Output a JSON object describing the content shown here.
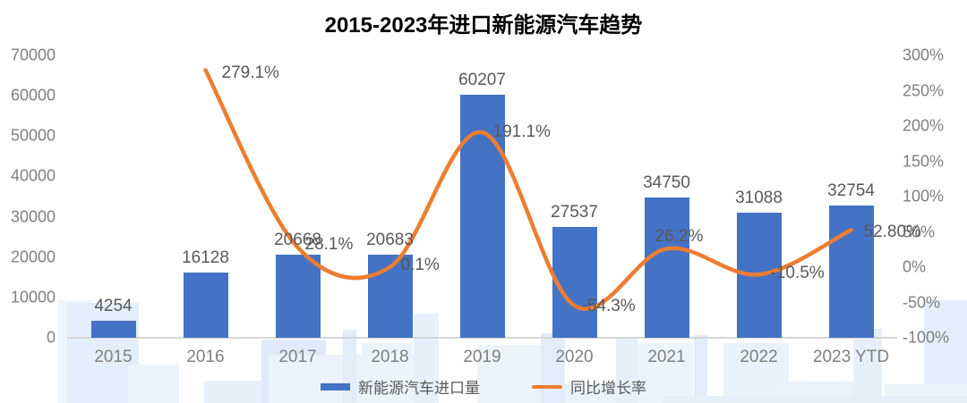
{
  "title": "2015-2023年进口新能源汽车趋势",
  "chart_data": {
    "type": "combo",
    "title": "2015-2023年进口新能源汽车趋势",
    "categories": [
      "2015",
      "2016",
      "2017",
      "2018",
      "2019",
      "2020",
      "2021",
      "2022",
      "2023 YTD"
    ],
    "series": [
      {
        "name": "新能源汽车进口量",
        "chart_type": "bar",
        "color": "#4472C4",
        "values": [
          4254,
          16128,
          20668,
          20683,
          60207,
          27537,
          34750,
          31088,
          32754
        ],
        "data_labels": [
          "4254",
          "16128",
          "20668",
          "20683",
          "60207",
          "27537",
          "34750",
          "31088",
          "32754"
        ]
      },
      {
        "name": "同比增长率",
        "chart_type": "line",
        "color": "#ED7D31",
        "values": [
          null,
          279.1,
          28.1,
          0.1,
          191.1,
          -54.3,
          26.2,
          -10.5,
          52.8
        ],
        "data_labels": [
          "",
          "279.1%",
          "28.1%",
          "0.1%",
          "191.1%",
          "-54.3%",
          "26.2%",
          "-10.5%",
          "52.80%"
        ]
      }
    ],
    "left_axis": {
      "min": 0,
      "max": 70000,
      "ticks": [
        "70000",
        "60000",
        "50000",
        "40000",
        "30000",
        "20000",
        "10000",
        "0"
      ]
    },
    "right_axis": {
      "min": -100,
      "max": 300,
      "ticks": [
        "300%",
        "250%",
        "200%",
        "150%",
        "100%",
        "50%",
        "0%",
        "-50%",
        "-100%"
      ]
    },
    "legend": {
      "position": "bottom",
      "items": [
        "新能源汽车进口量",
        "同比增长率"
      ]
    },
    "grid": false
  },
  "colors": {
    "bar": "#4472C4",
    "line": "#ED7D31",
    "data_label": "#595959",
    "tick_label": "#7f7f7f",
    "axis_line": "#d6d6d6"
  }
}
